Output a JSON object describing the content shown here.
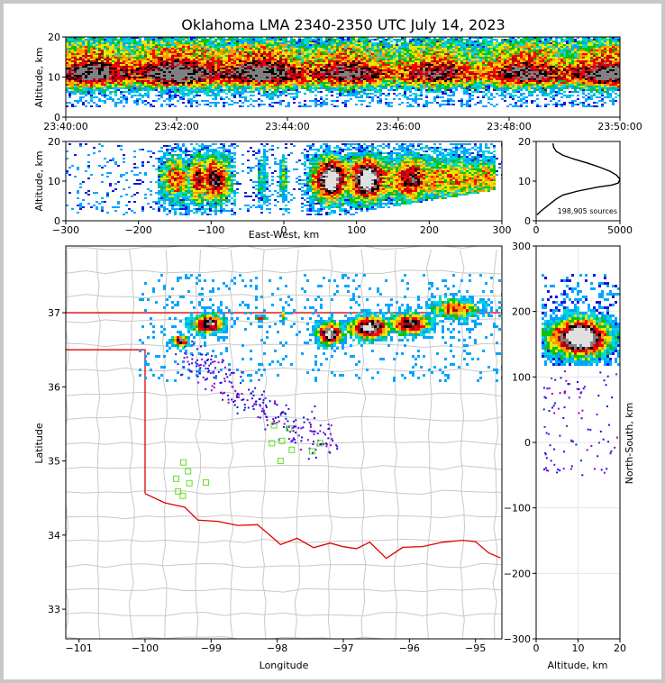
{
  "chart_data": {
    "title": "Oklahoma LMA 2340-2350 UTC July 14, 2023",
    "source_count_label": "198,905 sources",
    "panels": {
      "time_height": {
        "type": "heatmap",
        "ylabel": "Altitude, km",
        "ylim": [
          0,
          20
        ],
        "yticks": [
          "0",
          "10",
          "20"
        ],
        "xticks": [
          "23:40:00",
          "23:42:00",
          "23:44:00",
          "23:46:00",
          "23:48:00",
          "23:50:00"
        ],
        "xlim_minutes": [
          0,
          10
        ]
      },
      "ew_height": {
        "type": "heatmap",
        "xlabel": "East-West, km",
        "ylabel": "Altitude, km",
        "xlim": [
          -300,
          300
        ],
        "ylim": [
          0,
          20
        ],
        "xticks": [
          "−300",
          "−200",
          "−100",
          "0",
          "100",
          "200",
          "300"
        ],
        "yticks": [
          "0",
          "10",
          "20"
        ]
      },
      "altitude_histogram": {
        "type": "line",
        "xlim": [
          0,
          5000
        ],
        "ylim": [
          0,
          20
        ],
        "xticks": [
          "0",
          "5000"
        ],
        "yticks": [
          "0",
          "10",
          "20"
        ],
        "x": [
          1000,
          1050,
          1200,
          1600,
          2300,
          3100,
          3800,
          4400,
          4800,
          5000,
          4900,
          4500,
          3700,
          2500,
          1600,
          1200,
          900,
          600,
          300,
          50
        ],
        "y": [
          19.5,
          18.5,
          17.5,
          16.5,
          15.5,
          14.5,
          13.5,
          12.5,
          11.5,
          10.5,
          9.5,
          9,
          8.5,
          7.5,
          6.5,
          5.5,
          4.5,
          3.5,
          2.5,
          1.5
        ]
      },
      "plan_view": {
        "type": "scatter",
        "xlabel": "Longitude",
        "ylabel": "Latitude",
        "xlim": [
          -101.2,
          -94.6
        ],
        "ylim": [
          32.6,
          37.9
        ],
        "xticks": [
          "−101",
          "−100",
          "−99",
          "−98",
          "−97",
          "−96",
          "−95"
        ],
        "yticks": [
          "33",
          "34",
          "35",
          "36",
          "37"
        ],
        "stations": [
          {
            "lon": -99.42,
            "lat": 34.98
          },
          {
            "lon": -99.35,
            "lat": 34.86
          },
          {
            "lon": -99.53,
            "lat": 34.76
          },
          {
            "lon": -99.33,
            "lat": 34.7
          },
          {
            "lon": -99.5,
            "lat": 34.59
          },
          {
            "lon": -99.43,
            "lat": 34.53
          },
          {
            "lon": -99.08,
            "lat": 34.71
          },
          {
            "lon": -98.05,
            "lat": 35.48
          },
          {
            "lon": -97.82,
            "lat": 35.44
          },
          {
            "lon": -98.08,
            "lat": 35.24
          },
          {
            "lon": -97.93,
            "lat": 35.27
          },
          {
            "lon": -97.78,
            "lat": 35.15
          },
          {
            "lon": -97.47,
            "lat": 35.13
          },
          {
            "lon": -97.35,
            "lat": 35.24
          },
          {
            "lon": -97.95,
            "lat": 35.0
          }
        ]
      },
      "ns_height": {
        "type": "heatmap",
        "xlabel": "Altitude, km",
        "ylabel": "North-South, km",
        "xlim": [
          0,
          20
        ],
        "ylim": [
          -300,
          300
        ],
        "xticks": [
          "0",
          "10",
          "20"
        ],
        "yticks": [
          "−300",
          "−200",
          "−100",
          "0",
          "100",
          "200",
          "300"
        ]
      }
    }
  }
}
